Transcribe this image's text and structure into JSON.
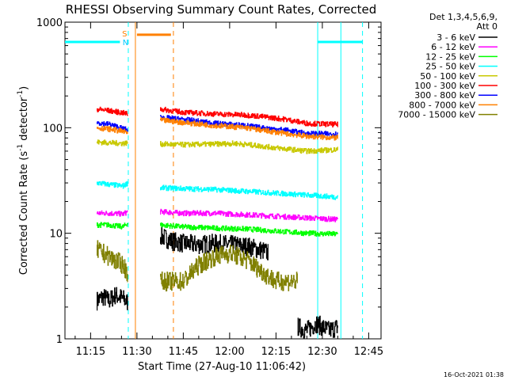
{
  "chart_data": {
    "type": "line",
    "title": "RHESSI Observing Summary Count Rates, Corrected",
    "xlabel": "Start Time (27-Aug-10 11:06:42)",
    "ylabel_main": "Corrected Count Rate (s",
    "ylabel_sup1": "-1",
    "ylabel_mid": " detector",
    "ylabel_sup2": "-1",
    "ylabel_end": ")",
    "yscale": "log",
    "ylim": [
      1,
      1000
    ],
    "xlim_min": [
      66.7,
      169
    ],
    "x_unit": "minutes after 10:00 UT",
    "x_ticks": [
      {
        "v": 75,
        "label": "11:15"
      },
      {
        "v": 90,
        "label": "11:30"
      },
      {
        "v": 105,
        "label": "11:45"
      },
      {
        "v": 120,
        "label": "12:00"
      },
      {
        "v": 135,
        "label": "12:15"
      },
      {
        "v": 150,
        "label": "12:30"
      },
      {
        "v": 165,
        "label": "12:45"
      }
    ],
    "y_ticks": [
      {
        "v": 1,
        "label": "1"
      },
      {
        "v": 10,
        "label": "10"
      },
      {
        "v": 100,
        "label": "100"
      },
      {
        "v": 1000,
        "label": "1000"
      }
    ],
    "legend_header": [
      "Det 1,3,4,5,6,9,",
      "Att 0"
    ],
    "legend_position": "right",
    "series": [
      {
        "name": "3 - 6 keV",
        "color": "#000000",
        "segments": [
          {
            "x": [
              77,
              79,
              81,
              83,
              85.5,
              87
            ],
            "y": [
              2.3,
              2.5,
              2.3,
              2.6,
              2.4,
              2.2
            ]
          },
          {
            "x": [
              97.5,
              101,
              105,
              110,
              115,
              120,
              126,
              131,
              132.5
            ],
            "y": [
              9.5,
              8.5,
              8.0,
              7.8,
              8.0,
              7.8,
              7.5,
              6.8,
              6.5
            ]
          },
          {
            "x": [
              142,
              145,
              148,
              152,
              155
            ],
            "y": [
              1.3,
              1.2,
              1.4,
              1.2,
              1.3
            ]
          }
        ]
      },
      {
        "name": "6 - 12 keV",
        "color": "#ff00ff",
        "segments": [
          {
            "x": [
              77,
              81,
              85.5,
              87
            ],
            "y": [
              15.5,
              15.5,
              15.2,
              16
            ]
          },
          {
            "x": [
              97.5,
              105,
              115,
              125,
              135,
              145,
              155
            ],
            "y": [
              16,
              15.5,
              15.5,
              15,
              14.5,
              14,
              13.5
            ]
          }
        ]
      },
      {
        "name": "12 - 25 keV",
        "color": "#00ff00",
        "segments": [
          {
            "x": [
              77,
              81,
              85.5,
              87
            ],
            "y": [
              12,
              12,
              11.5,
              12.5
            ]
          },
          {
            "x": [
              97.5,
              105,
              115,
              125,
              135,
              145,
              155
            ],
            "y": [
              12,
              11.5,
              11.2,
              11,
              10.5,
              10,
              9.8
            ]
          }
        ]
      },
      {
        "name": "25 - 50 keV",
        "color": "#00ffff",
        "segments": [
          {
            "x": [
              77,
              81,
              85.5,
              87
            ],
            "y": [
              30,
              29,
              28,
              30
            ]
          },
          {
            "x": [
              97.5,
              105,
              115,
              125,
              135,
              145,
              155
            ],
            "y": [
              27,
              26.5,
              26,
              25,
              24,
              23,
              22
            ]
          }
        ]
      },
      {
        "name": "50 - 100 keV",
        "color": "#c8c800",
        "segments": [
          {
            "x": [
              77,
              81,
              85.5,
              87
            ],
            "y": [
              73,
              72,
              71,
              72
            ]
          },
          {
            "x": [
              97.5,
              105,
              115,
              122,
              130,
              138,
              145,
              155
            ],
            "y": [
              70,
              69,
              70,
              71,
              67,
              63,
              60,
              62
            ]
          }
        ]
      },
      {
        "name": "100 - 300 keV",
        "color": "#ff0000",
        "segments": [
          {
            "x": [
              77,
              81,
              85.5,
              87
            ],
            "y": [
              150,
              145,
              138,
              135
            ]
          },
          {
            "x": [
              97.5,
              105,
              115,
              125,
              130,
              138,
              145,
              155
            ],
            "y": [
              150,
              140,
              135,
              132,
              128,
              120,
              110,
              107
            ]
          }
        ]
      },
      {
        "name": "300 - 800 keV",
        "color": "#0000ff",
        "segments": [
          {
            "x": [
              77,
              81,
              85.5,
              87
            ],
            "y": [
              112,
              108,
              98,
              95
            ]
          },
          {
            "x": [
              97.5,
              105,
              115,
              125,
              130,
              138,
              145,
              155
            ],
            "y": [
              125,
              120,
              110,
              105,
              100,
              95,
              88,
              87
            ]
          }
        ]
      },
      {
        "name": "800 - 7000 keV",
        "color": "#ff8000",
        "segments": [
          {
            "x": [
              77,
              81,
              85.5,
              87
            ],
            "y": [
              100,
              97,
              92,
              90
            ]
          },
          {
            "x": [
              97.5,
              105,
              115,
              125,
              130,
              138,
              145,
              155
            ],
            "y": [
              118,
              112,
              105,
              100,
              95,
              88,
              83,
              80
            ]
          }
        ]
      },
      {
        "name": "7000 - 15000 keV",
        "color": "#808000",
        "segments": [
          {
            "x": [
              77,
              81,
              85.5,
              87
            ],
            "y": [
              7,
              6,
              5,
              4.2
            ]
          },
          {
            "x": [
              97.5,
              105,
              110,
              115,
              120,
              126,
              131,
              135,
              138,
              142
            ],
            "y": [
              3.5,
              3.5,
              5,
              6,
              6.5,
              5.5,
              4.2,
              3.5,
              3.5,
              3.5
            ]
          }
        ]
      }
    ],
    "flags": {
      "saa_label": "S",
      "night_label": "N",
      "cyan_bar": [
        [
          66.7,
          84.5
        ],
        [
          148.5,
          163
        ]
      ],
      "orange_bar": [
        90,
        101
      ],
      "cyan_level": 650,
      "orange_level": 760
    },
    "vlines": [
      {
        "x": 87.2,
        "color": "#00ffff",
        "dash": true
      },
      {
        "x": 89.5,
        "color": "#ff8000",
        "dash": false
      },
      {
        "x": 101.8,
        "color": "#ff8000",
        "dash": true
      },
      {
        "x": 148.5,
        "color": "#00ffff",
        "dash": false
      },
      {
        "x": 156,
        "color": "#00ffff",
        "dash": false
      },
      {
        "x": 163,
        "color": "#00ffff",
        "dash": true
      }
    ]
  },
  "timestamp": "16-Oct-2021 01:38"
}
